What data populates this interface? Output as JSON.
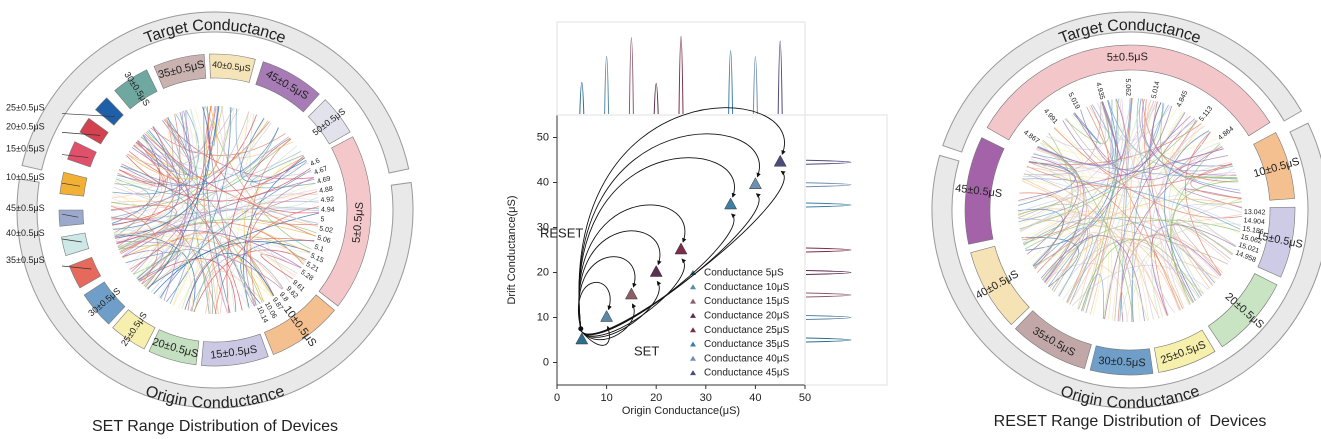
{
  "chart_data": [
    {
      "type": "chord",
      "title": "SET Range Distribution of Devices",
      "ring_labels": [
        "Target Conductance",
        "Origin Conductance"
      ],
      "segments": [
        {
          "label": "5±0.5μS",
          "color": "#f4c7cb",
          "tick_labels": [
            "4.6",
            "4.67",
            "4.69",
            "4.88",
            "4.92",
            "4.94",
            "5",
            "5.02",
            "5.06",
            "5.1",
            "5.15",
            "5.21",
            "5.28"
          ]
        },
        {
          "label": "10±0.5μS",
          "color": "#f5c08f",
          "tick_labels": [
            "9.61",
            "9.62",
            "9.8",
            "9.87",
            "10.06",
            "10.14"
          ]
        },
        {
          "label": "15±0.5μS",
          "color": "#cbc8e4"
        },
        {
          "label": "20±0.5μS",
          "color": "#c5e0c0"
        },
        {
          "label": "25±0.5μS",
          "color": "#f7efae"
        },
        {
          "label": "30±0.5μS",
          "color": "#6f9fc9"
        },
        {
          "label": "35±0.5μS",
          "color": "#e66a5c"
        },
        {
          "label": "40±0.5μS",
          "color": "#cde8e6"
        },
        {
          "label": "45±0.5μS",
          "color": "#9aa9cc"
        },
        {
          "label": "10±0.5μS",
          "color": "#f2b134"
        },
        {
          "label": "15±0.5μS",
          "color": "#e0506a"
        },
        {
          "label": "20±0.5μS",
          "color": "#d2424f"
        },
        {
          "label": "25±0.5μS",
          "color": "#1f5fa8"
        },
        {
          "label": "30±0.5μS",
          "color": "#6ea8a0"
        },
        {
          "label": "35±0.5μS",
          "color": "#c9b2b0"
        },
        {
          "label": "40±0.5μS",
          "color": "#f4e4b8"
        },
        {
          "label": "45±0.5μS",
          "color": "#a77bb5"
        },
        {
          "label": "50±0.5μS",
          "color": "#e2e2ec"
        }
      ]
    },
    {
      "type": "scatter",
      "xlabel": "Origin Conductance(μS)",
      "ylabel": "Drift Conductance(μS)",
      "xlim": [
        0,
        50
      ],
      "ylim": [
        -5,
        55
      ],
      "xticks": [
        0,
        10,
        20,
        30,
        40,
        50
      ],
      "yticks": [
        0,
        10,
        20,
        30,
        40,
        50
      ],
      "annotations": [
        "RESET",
        "SET"
      ],
      "series": [
        {
          "name": "Conductance 5μS",
          "color": "#2e6e8e",
          "x": [
            5
          ],
          "values": [
            5
          ]
        },
        {
          "name": "Conductance 10μS",
          "color": "#5b88a6",
          "x": [
            10
          ],
          "values": [
            10
          ]
        },
        {
          "name": "Conductance 15μS",
          "color": "#8e5d6a",
          "x": [
            15
          ],
          "values": [
            15
          ]
        },
        {
          "name": "Conductance 20μS",
          "color": "#5c2e50",
          "x": [
            20
          ],
          "values": [
            20
          ]
        },
        {
          "name": "Conductance 25μS",
          "color": "#7c2d4a",
          "x": [
            25
          ],
          "values": [
            25
          ]
        },
        {
          "name": "Conductance 35μS",
          "color": "#3f7ea5",
          "x": [
            35
          ],
          "values": [
            35
          ]
        },
        {
          "name": "Conductance 40μS",
          "color": "#6f8fb5",
          "x": [
            40
          ],
          "values": [
            39.5
          ]
        },
        {
          "name": "Conductance 45μS",
          "color": "#4d4a7e",
          "x": [
            45
          ],
          "values": [
            44.5
          ]
        }
      ]
    },
    {
      "type": "chord",
      "title": "RESET Range Distribution of  Devices",
      "ring_labels": [
        "Target Conductance",
        "Origin Conductance"
      ],
      "segments": [
        {
          "label": "5±0.5μS",
          "color": "#f3c6c9",
          "tick_labels": [
            "4.867",
            "4.991",
            "5.019",
            "4.935",
            "5.062",
            "5.014",
            "4.845",
            "5.113",
            "4.864"
          ]
        },
        {
          "label": "10±0.5μS",
          "color": "#f5c08f"
        },
        {
          "label": "15±0.5μS",
          "color": "#cdcbe6",
          "tick_labels": [
            "13.042",
            "14.904",
            "15.186",
            "15.062",
            "15.021",
            "14.958"
          ]
        },
        {
          "label": "20±0.5μS",
          "color": "#c8e4c3"
        },
        {
          "label": "25±0.5μS",
          "color": "#f7f0ac"
        },
        {
          "label": "30±0.5μS",
          "color": "#6f9fc9"
        },
        {
          "label": "35±0.5μS",
          "color": "#c2a7a8"
        },
        {
          "label": "40±0.5μS",
          "color": "#f6e3b5"
        },
        {
          "label": "45±0.5μS",
          "color": "#a463a8"
        }
      ]
    }
  ]
}
